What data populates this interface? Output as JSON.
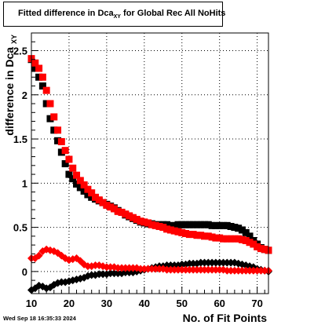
{
  "title": {
    "prefix": "Fitted difference in Dca",
    "sub": "XY",
    "suffix": " for Global Rec All NoHits"
  },
  "timestamp": "Wed Sep 18 16:35:33 2024",
  "chart_data": {
    "type": "scatter",
    "xlabel": "No. of Fit Points",
    "ylabel_main": "difference in Dca",
    "ylabel_sub": "XY",
    "xlim": [
      10,
      73
    ],
    "ylim": [
      -0.25,
      2.7
    ],
    "xticks": [
      10,
      20,
      30,
      40,
      50,
      60,
      70
    ],
    "yticks": [
      0,
      0.5,
      1,
      1.5,
      2,
      2.5
    ],
    "grid": true,
    "series": [
      {
        "marker": "square",
        "color": "#000000",
        "x": [
          10,
          11,
          12,
          13,
          14,
          15,
          16,
          17,
          18,
          19,
          20,
          21,
          22,
          23,
          24,
          25,
          26,
          27,
          28,
          29,
          30,
          31,
          32,
          33,
          34,
          35,
          36,
          37,
          38,
          39,
          40,
          41,
          42,
          43,
          44,
          45,
          46,
          47,
          48,
          49,
          50,
          51,
          52,
          53,
          54,
          55,
          56,
          57,
          58,
          59,
          60,
          61,
          62,
          63,
          64,
          65,
          66,
          67,
          68,
          69,
          70,
          71,
          72,
          73
        ],
        "y": [
          2.4,
          2.3,
          2.2,
          2.1,
          1.9,
          1.73,
          1.6,
          1.48,
          1.35,
          1.22,
          1.1,
          1.05,
          0.99,
          0.95,
          0.91,
          0.87,
          0.84,
          0.82,
          0.8,
          0.78,
          0.76,
          0.74,
          0.72,
          0.69,
          0.67,
          0.64,
          0.62,
          0.6,
          0.58,
          0.56,
          0.55,
          0.54,
          0.54,
          0.53,
          0.53,
          0.53,
          0.53,
          0.52,
          0.52,
          0.53,
          0.53,
          0.53,
          0.53,
          0.53,
          0.53,
          0.53,
          0.53,
          0.53,
          0.52,
          0.52,
          0.52,
          0.52,
          0.52,
          0.51,
          0.5,
          0.49,
          0.47,
          0.44,
          0.4,
          0.35,
          0.31,
          0.27,
          0.25,
          0.24
        ]
      },
      {
        "marker": "square",
        "color": "#ff0000",
        "x": [
          10,
          11,
          12,
          13,
          14,
          15,
          16,
          17,
          18,
          19,
          20,
          21,
          22,
          23,
          24,
          25,
          26,
          27,
          28,
          29,
          30,
          31,
          32,
          33,
          34,
          35,
          36,
          37,
          38,
          39,
          40,
          41,
          42,
          43,
          44,
          45,
          46,
          47,
          48,
          49,
          50,
          51,
          52,
          53,
          54,
          55,
          56,
          57,
          58,
          59,
          60,
          61,
          62,
          63,
          64,
          65,
          66,
          67,
          68,
          69,
          70,
          71,
          72,
          73
        ],
        "y": [
          2.41,
          2.36,
          2.3,
          2.2,
          2.05,
          1.9,
          1.75,
          1.6,
          1.47,
          1.37,
          1.27,
          1.17,
          1.09,
          1.03,
          0.98,
          0.93,
          0.89,
          0.84,
          0.81,
          0.78,
          0.75,
          0.73,
          0.71,
          0.68,
          0.67,
          0.65,
          0.63,
          0.61,
          0.59,
          0.57,
          0.56,
          0.55,
          0.53,
          0.52,
          0.51,
          0.5,
          0.48,
          0.47,
          0.46,
          0.45,
          0.44,
          0.43,
          0.42,
          0.42,
          0.41,
          0.41,
          0.4,
          0.4,
          0.39,
          0.38,
          0.38,
          0.37,
          0.37,
          0.37,
          0.37,
          0.37,
          0.36,
          0.35,
          0.33,
          0.31,
          0.28,
          0.26,
          0.25,
          0.24
        ]
      },
      {
        "marker": "diamond",
        "color": "#000000",
        "x": [
          10,
          11,
          12,
          13,
          14,
          15,
          16,
          17,
          18,
          19,
          20,
          21,
          22,
          23,
          24,
          25,
          26,
          27,
          28,
          29,
          30,
          31,
          32,
          33,
          34,
          35,
          36,
          37,
          38,
          39,
          40,
          41,
          42,
          43,
          44,
          45,
          46,
          47,
          48,
          49,
          50,
          51,
          52,
          53,
          54,
          55,
          56,
          57,
          58,
          59,
          60,
          61,
          62,
          63,
          64,
          65,
          66,
          67,
          68,
          69,
          70,
          71,
          72,
          73
        ],
        "y": [
          -0.21,
          -0.19,
          -0.16,
          -0.17,
          -0.19,
          -0.18,
          -0.15,
          -0.13,
          -0.12,
          -0.12,
          -0.11,
          -0.1,
          -0.09,
          -0.08,
          -0.07,
          -0.05,
          -0.04,
          -0.04,
          -0.03,
          -0.03,
          -0.03,
          -0.02,
          -0.02,
          -0.02,
          -0.02,
          -0.01,
          -0.01,
          -0.01,
          0.0,
          0.01,
          0.02,
          0.03,
          0.04,
          0.05,
          0.06,
          0.06,
          0.07,
          0.07,
          0.07,
          0.07,
          0.08,
          0.08,
          0.09,
          0.09,
          0.09,
          0.1,
          0.1,
          0.1,
          0.1,
          0.1,
          0.1,
          0.1,
          0.1,
          0.1,
          0.1,
          0.09,
          0.08,
          0.07,
          0.06,
          0.05,
          0.03,
          0.02,
          0.01,
          0.0
        ]
      },
      {
        "marker": "diamond",
        "color": "#ff0000",
        "x": [
          10,
          11,
          12,
          13,
          14,
          15,
          16,
          17,
          18,
          19,
          20,
          21,
          22,
          23,
          24,
          25,
          26,
          27,
          28,
          29,
          30,
          31,
          32,
          33,
          34,
          35,
          36,
          37,
          38,
          39,
          40,
          41,
          42,
          43,
          44,
          45,
          46,
          47,
          48,
          49,
          50,
          51,
          52,
          53,
          54,
          55,
          56,
          57,
          58,
          59,
          60,
          61,
          62,
          63,
          64,
          65,
          66,
          67,
          68,
          69,
          70,
          71,
          72,
          73
        ],
        "y": [
          0.15,
          0.15,
          0.18,
          0.23,
          0.25,
          0.24,
          0.23,
          0.21,
          0.18,
          0.15,
          0.13,
          0.14,
          0.15,
          0.12,
          0.08,
          0.06,
          0.06,
          0.07,
          0.07,
          0.06,
          0.05,
          0.05,
          0.05,
          0.04,
          0.04,
          0.04,
          0.04,
          0.04,
          0.04,
          0.03,
          0.03,
          0.03,
          0.03,
          0.03,
          0.03,
          0.03,
          0.02,
          0.02,
          0.02,
          0.02,
          0.02,
          0.02,
          0.02,
          0.02,
          0.02,
          0.02,
          0.02,
          0.02,
          0.02,
          0.02,
          0.02,
          0.02,
          0.01,
          0.01,
          0.01,
          0.01,
          0.01,
          0.01,
          0.01,
          0.01,
          0.01,
          0.01,
          0.01,
          0.01
        ]
      }
    ]
  }
}
